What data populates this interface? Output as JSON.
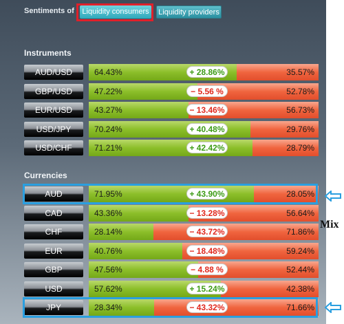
{
  "header": {
    "sentiments_label": "Sentiments of",
    "tabs": [
      "Liquidity consumers",
      "Liquidity providers"
    ],
    "active_tab": "Liquidity consumers"
  },
  "instruments": {
    "title": "Instruments",
    "rows": [
      {
        "name": "AUD/USD",
        "left": "64.43%",
        "diff": "+ 28.86%",
        "right": "35.57%",
        "share": 0.6443
      },
      {
        "name": "GBP/USD",
        "left": "47.22%",
        "diff": "− 5.56 %",
        "right": "52.78%",
        "share": 0.4722
      },
      {
        "name": "EUR/USD",
        "left": "43.27%",
        "diff": "− 13.46%",
        "right": "56.73%",
        "share": 0.4327
      },
      {
        "name": "USD/JPY",
        "left": "70.24%",
        "diff": "+ 40.48%",
        "right": "29.76%",
        "share": 0.7024
      },
      {
        "name": "USD/CHF",
        "left": "71.21%",
        "diff": "+ 42.42%",
        "right": "28.79%",
        "share": 0.7121
      }
    ]
  },
  "currencies": {
    "title": "Currencies",
    "rows": [
      {
        "name": "AUD",
        "left": "71.95%",
        "diff": "+ 43.90%",
        "right": "28.05%",
        "share": 0.7195
      },
      {
        "name": "CAD",
        "left": "43.36%",
        "diff": "− 13.28%",
        "right": "56.64%",
        "share": 0.4336
      },
      {
        "name": "CHF",
        "left": "28.14%",
        "diff": "− 43.72%",
        "right": "71.86%",
        "share": 0.2814
      },
      {
        "name": "EUR",
        "left": "40.76%",
        "diff": "− 18.48%",
        "right": "59.24%",
        "share": 0.4076
      },
      {
        "name": "GBP",
        "left": "47.56%",
        "diff": "− 4.88 %",
        "right": "52.44%",
        "share": 0.4756
      },
      {
        "name": "USD",
        "left": "57.62%",
        "diff": "+ 15.24%",
        "right": "42.38%",
        "share": 0.5762
      },
      {
        "name": "JPY",
        "left": "28.34%",
        "diff": "− 43.32%",
        "right": "71.66%",
        "share": 0.2834
      }
    ]
  },
  "annotations": {
    "mix_label": "Mix",
    "arrow_icon": "left-arrow-icon",
    "highlight_color": "#2a9fe0",
    "tab_highlight_color": "#e0202a"
  },
  "colors": {
    "buy": "#8cbf2a",
    "sell": "#f0653f"
  }
}
